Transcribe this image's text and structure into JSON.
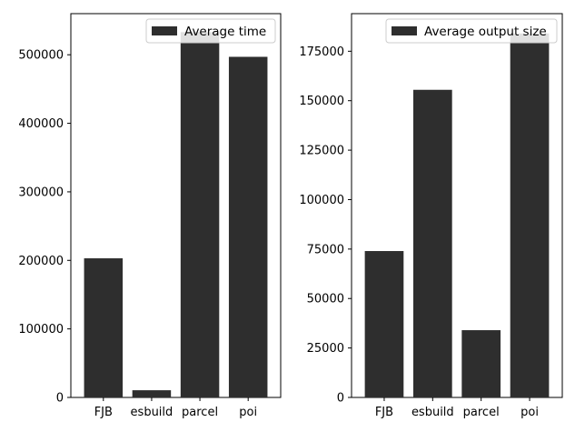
{
  "chart_data": [
    {
      "type": "bar",
      "categories": [
        "FJB",
        "esbuild",
        "parcel",
        "poi"
      ],
      "series": [
        {
          "name": "Average time",
          "values": [
            203000,
            10500,
            533000,
            497000
          ]
        }
      ],
      "ylim": [
        0,
        560000
      ],
      "yticks": [
        0,
        100000,
        200000,
        300000,
        400000,
        500000
      ],
      "ytick_labels": [
        "0",
        "100000",
        "200000",
        "300000",
        "400000",
        "500000"
      ],
      "bar_color": "#2e2e2e",
      "grid": false,
      "legend_position": "top-right"
    },
    {
      "type": "bar",
      "categories": [
        "FJB",
        "esbuild",
        "parcel",
        "poi"
      ],
      "series": [
        {
          "name": "Average output size",
          "values": [
            74000,
            155500,
            34000,
            184000
          ]
        }
      ],
      "ylim": [
        0,
        194000
      ],
      "yticks": [
        0,
        25000,
        50000,
        75000,
        100000,
        125000,
        150000,
        175000
      ],
      "ytick_labels": [
        "0",
        "25000",
        "50000",
        "75000",
        "100000",
        "125000",
        "150000",
        "175000"
      ],
      "bar_color": "#2e2e2e",
      "grid": false,
      "legend_position": "top-right"
    }
  ]
}
